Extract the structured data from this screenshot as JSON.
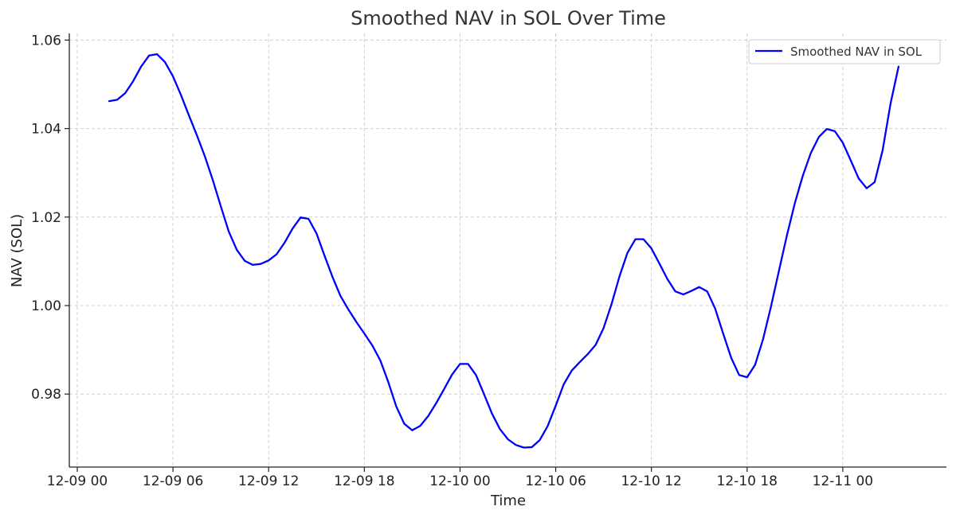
{
  "chart_data": {
    "type": "line",
    "title": "Smoothed NAV in SOL Over Time",
    "xlabel": "Time",
    "ylabel": "NAV (SOL)",
    "grid": true,
    "legend_position": "top-right",
    "line_color": "#0000ff",
    "x_tick_labels": [
      "12-09 00",
      "12-09 06",
      "12-09 12",
      "12-09 18",
      "12-10 00",
      "12-10 06",
      "12-10 12",
      "12-10 18",
      "12-11 00"
    ],
    "y_tick_labels": [
      "0.98",
      "1.00",
      "1.02",
      "1.04",
      "1.06"
    ],
    "x_tick_hours": [
      0,
      6,
      12,
      18,
      24,
      30,
      36,
      42,
      48
    ],
    "y_tick_values": [
      0.98,
      1.0,
      1.02,
      1.04,
      1.06
    ],
    "xlim_hours": [
      -0.5,
      54.5
    ],
    "ylim": [
      0.9635,
      1.0615
    ],
    "series": [
      {
        "name": "Smoothed NAV in SOL",
        "x_hours": [
          2.0,
          2.5,
          3.0,
          3.5,
          4.0,
          4.5,
          5.0,
          5.5,
          6.0,
          6.5,
          7.0,
          7.5,
          8.0,
          8.5,
          9.0,
          9.5,
          10.0,
          10.5,
          11.0,
          11.5,
          12.0,
          12.5,
          13.0,
          13.5,
          14.0,
          14.5,
          15.0,
          15.5,
          16.0,
          16.5,
          17.0,
          17.5,
          18.0,
          18.5,
          19.0,
          19.5,
          20.0,
          20.5,
          21.0,
          21.5,
          22.0,
          22.5,
          23.0,
          23.5,
          24.0,
          24.5,
          25.0,
          25.5,
          26.0,
          26.5,
          27.0,
          27.5,
          28.0,
          28.5,
          29.0,
          29.5,
          30.0,
          30.5,
          31.0,
          31.5,
          32.0,
          32.5,
          33.0,
          33.5,
          34.0,
          34.5,
          35.0,
          35.5,
          36.0,
          36.5,
          37.0,
          37.5,
          38.0,
          38.5,
          39.0,
          39.5,
          40.0,
          40.5,
          41.0,
          41.5,
          42.0,
          42.5,
          43.0,
          43.5,
          44.0,
          44.5,
          45.0,
          45.5,
          46.0,
          46.5,
          47.0,
          47.5,
          48.0,
          48.5,
          49.0,
          49.5,
          50.0,
          50.5,
          51.0,
          51.5
        ],
        "values": [
          1.0462,
          1.0465,
          1.048,
          1.0507,
          1.054,
          1.0565,
          1.0568,
          1.055,
          1.0518,
          1.0476,
          1.043,
          1.0385,
          1.0337,
          1.0283,
          1.0224,
          1.0167,
          1.0126,
          1.0101,
          1.0092,
          1.0094,
          1.0102,
          1.0116,
          1.0142,
          1.0174,
          1.0199,
          1.0196,
          1.0163,
          1.0113,
          1.0065,
          1.0022,
          0.9991,
          0.9963,
          0.9937,
          0.991,
          0.9876,
          0.9827,
          0.9772,
          0.9733,
          0.9718,
          0.9728,
          0.975,
          0.9779,
          0.9811,
          0.9844,
          0.9868,
          0.9868,
          0.9843,
          0.98,
          0.9756,
          0.9721,
          0.9698,
          0.9685,
          0.9679,
          0.968,
          0.9696,
          0.9728,
          0.9774,
          0.9822,
          0.9853,
          0.9872,
          0.989,
          0.9911,
          0.9949,
          1.0003,
          1.0066,
          1.0119,
          1.015,
          1.015,
          1.0129,
          1.0095,
          1.006,
          1.0032,
          1.0025,
          1.0033,
          1.0042,
          1.0032,
          0.9993,
          0.9937,
          0.9882,
          0.9843,
          0.9838,
          0.9866,
          0.9924,
          0.9998,
          1.0079,
          1.0159,
          1.0232,
          1.0294,
          1.0345,
          1.0381,
          1.0399,
          1.0394,
          1.0368,
          1.0328,
          1.0287,
          1.0265,
          1.0279,
          1.0351,
          1.0457,
          1.054
        ]
      }
    ]
  }
}
